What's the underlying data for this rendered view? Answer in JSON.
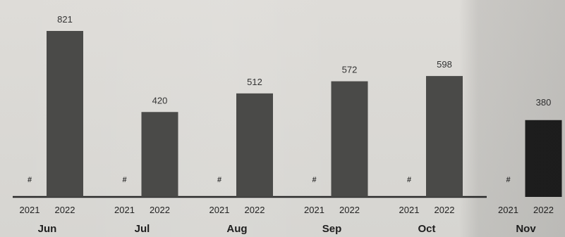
{
  "chart_data": {
    "type": "bar",
    "categories": [
      "Jun",
      "Jul",
      "Aug",
      "Sep",
      "Oct",
      "Nov"
    ],
    "series": [
      {
        "name": "2021",
        "values": [
          null,
          null,
          null,
          null,
          null,
          null
        ],
        "labels": [
          "#",
          "#",
          "#",
          "#",
          "#",
          "#"
        ]
      },
      {
        "name": "2022",
        "values": [
          821,
          420,
          512,
          572,
          598,
          380
        ],
        "labels": [
          "821",
          "420",
          "512",
          "572",
          "598",
          "380"
        ]
      }
    ],
    "title": "",
    "xlabel": "",
    "ylabel": "",
    "ylim": [
      0,
      900
    ],
    "grid": false,
    "legend": "none",
    "colors": {
      "bar": "#4a4a48",
      "bar_last": "#1e1e1e",
      "baseline": "#2a2a2a",
      "background": "#d9d8d4"
    }
  }
}
